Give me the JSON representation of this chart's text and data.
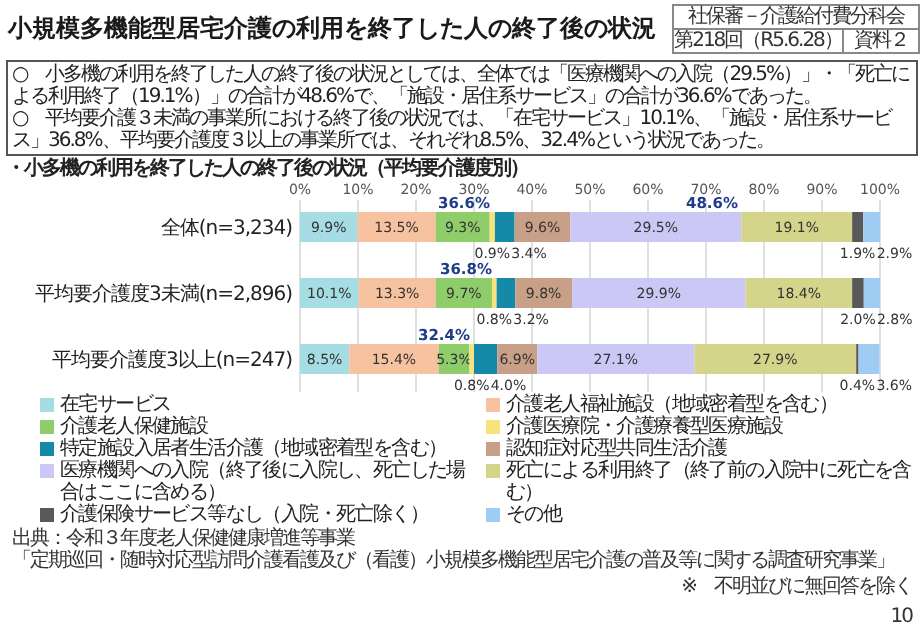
{
  "chart_data": {
    "type": "bar",
    "orientation": "horizontal",
    "stacked": true,
    "title": "小規模多機能型居宅介護の利用を終了した人の終了後の状況",
    "subtitle": "・小多機の利用を終了した人の終了後の状況（平均要介護度別）",
    "categories": [
      "全体(n=3,234)",
      "平均要介護度3未満(n=2,896)",
      "平均要介護度3以上(n=247)"
    ],
    "series": [
      {
        "name": "在宅サービス",
        "color": "#a6dde4",
        "values": [
          9.9,
          10.1,
          8.5
        ],
        "value_labels": [
          "9.9%",
          "10.1%",
          "8.5%"
        ]
      },
      {
        "name": "介護老人福祉施設（地域密着型を含む）",
        "color": "#f6c2a0",
        "values": [
          13.5,
          13.3,
          15.4
        ],
        "value_labels": [
          "13.5%",
          "13.3%",
          "15.4%"
        ]
      },
      {
        "name": "介護老人保健施設",
        "color": "#8fcc6a",
        "values": [
          9.3,
          9.7,
          5.3
        ],
        "value_labels": [
          "9.3%",
          "9.7%",
          "5.3%"
        ]
      },
      {
        "name": "介護医療院・介護療養型医療施設",
        "color": "#f7e27c",
        "values": [
          0.9,
          0.8,
          0.8
        ],
        "value_labels": [
          "0.9%",
          "0.8%",
          "0.8%"
        ]
      },
      {
        "name": "特定施設入居者生活介護（地域密着型を含む）",
        "color": "#158aa8",
        "values": [
          3.4,
          3.2,
          4.0
        ],
        "value_labels": [
          "3.4%",
          "3.2%",
          "4.0%"
        ]
      },
      {
        "name": "認知症対応型共同生活介護",
        "color": "#c8a088",
        "values": [
          9.6,
          9.8,
          6.9
        ],
        "value_labels": [
          "9.6%",
          "9.8%",
          "6.9%"
        ]
      },
      {
        "name": "医療機関への入院（終了後に入院し、死亡した場合はここに含める）",
        "color": "#cbc8f5",
        "values": [
          29.5,
          29.9,
          27.1
        ],
        "value_labels": [
          "29.5%",
          "29.9%",
          "27.1%"
        ]
      },
      {
        "name": "死亡による利用終了（終了前の入院中に死亡を含む）",
        "color": "#d4d58b",
        "values": [
          19.1,
          18.4,
          27.9
        ],
        "value_labels": [
          "19.1%",
          "18.4%",
          "27.9%"
        ]
      },
      {
        "name": "介護保険サービス等なし（入院・死亡除く）",
        "color": "#595959",
        "values": [
          1.9,
          2.0,
          0.4
        ],
        "value_labels": [
          "1.9%",
          "2.0%",
          "0.4%"
        ]
      },
      {
        "name": "その他",
        "color": "#9fccf2",
        "values": [
          2.9,
          2.8,
          3.6
        ],
        "value_labels": [
          "2.9%",
          "2.8%",
          "3.6%"
        ]
      }
    ],
    "xlim": [
      0,
      100
    ],
    "xticks": [
      {
        "value": 0,
        "label": "0%"
      },
      {
        "value": 10,
        "label": "10%"
      },
      {
        "value": 20,
        "label": "20%"
      },
      {
        "value": 30,
        "label": "30%"
      },
      {
        "value": 40,
        "label": "40%"
      },
      {
        "value": 50,
        "label": "50%"
      },
      {
        "value": 60,
        "label": "60%"
      },
      {
        "value": 70,
        "label": "70%"
      },
      {
        "value": 80,
        "label": "80%"
      },
      {
        "value": 90,
        "label": "90%"
      },
      {
        "value": 100,
        "label": "100%"
      }
    ],
    "grid": "x",
    "legend": "bottom",
    "annotations": [
      "社保審－介護給付費分科会",
      "第218回（R5.6.28）",
      "資料２",
      "○　小多機の利用を終了した人の終了後の状況としては、全体では「医療機関への入院（29.5%）」・「死亡による利用終了（19.1%）」の合計が48.6%で、「施設・居住系サービス」の合計が36.6%であった。",
      "○　平均要介護３未満の事業所における終了後の状況では、「在宅サービス」10.1%、「施設・居住系サービス」36.8%、平均要介護度３以上の事業所では、それぞれ8.5%、32.4%という状況であった。",
      "※　不明並びに無回答を除く",
      "出典：令和３年度老人保健健康増進等事業",
      "「定期巡回・随時対応型訪問介護看護及び（看護）小規模多機能型居宅介護の普及等に関する調査研究事業」",
      "10",
      "36.6%",
      "48.6%",
      "36.8%",
      "32.4%"
    ]
  }
}
